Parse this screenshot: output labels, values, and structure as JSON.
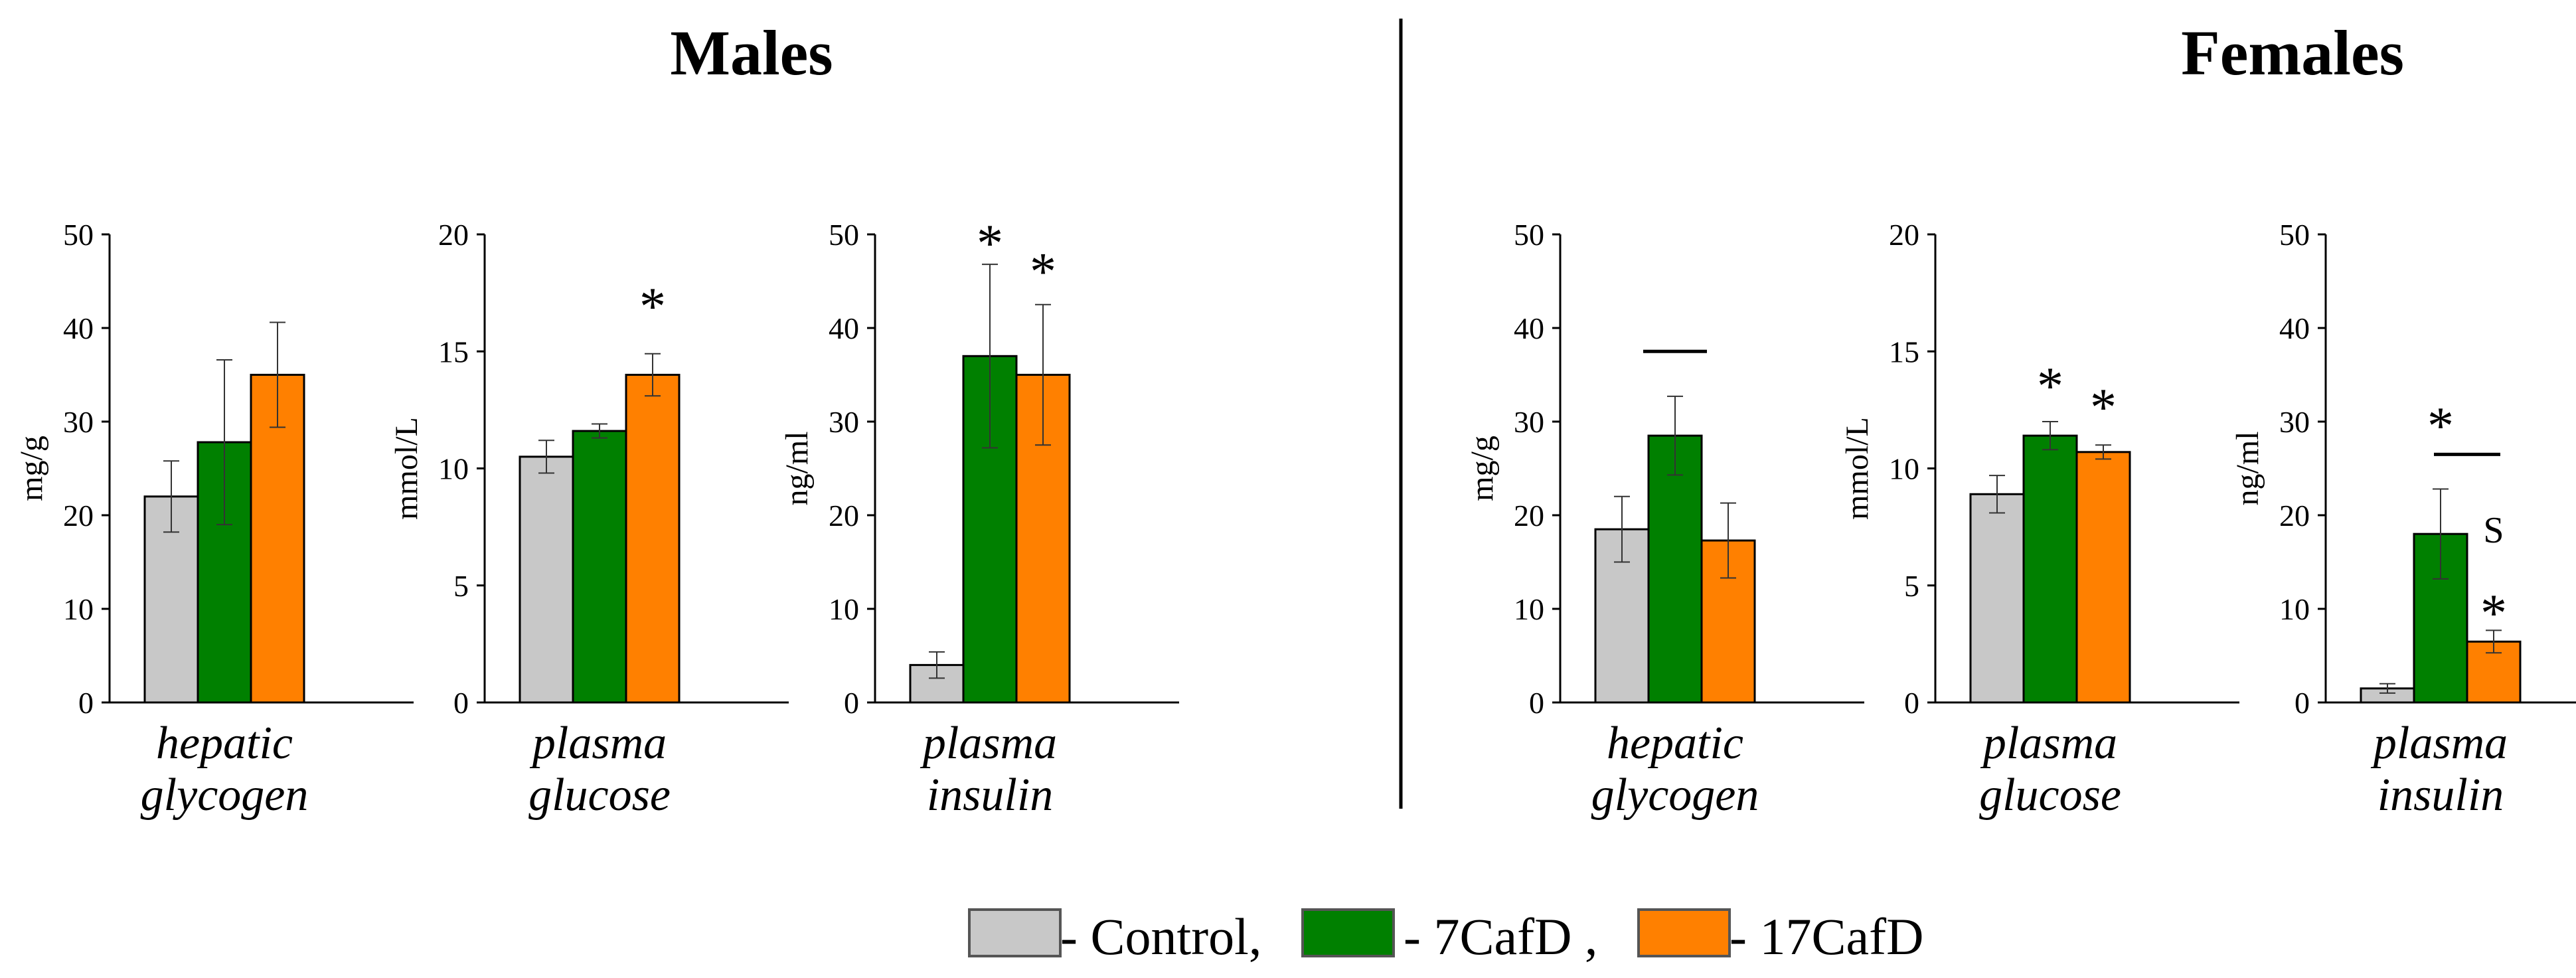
{
  "headings": {
    "males": "Males",
    "females": "Females"
  },
  "colors": {
    "Control": "#c8c8c8",
    "7CafD": "#008000",
    "17CafD": "#ff8000",
    "significance_S": "#ff0000"
  },
  "legend": [
    {
      "series": "Control",
      "label": "- Control,"
    },
    {
      "series": "7CafD",
      "label": "- 7CafD ,"
    },
    {
      "series": "17CafD",
      "label": "- 17CafD"
    }
  ],
  "chart_data": [
    {
      "type": "bar",
      "group": "Males",
      "xlabel_lines": [
        "hepatic",
        "glycogen"
      ],
      "ylabel": "mg/g",
      "ylim": [
        0,
        50
      ],
      "yticks": [
        0,
        10,
        20,
        30,
        40,
        50
      ],
      "series": [
        {
          "name": "Control",
          "value": 22,
          "error": 3.8
        },
        {
          "name": "7CafD",
          "value": 27.8,
          "error": 8.8
        },
        {
          "name": "17CafD",
          "value": 35,
          "error": 5.6
        }
      ],
      "annotations": []
    },
    {
      "type": "bar",
      "group": "Males",
      "xlabel_lines": [
        "plasma",
        "glucose"
      ],
      "ylabel": "mmol/L",
      "ylim": [
        0,
        20
      ],
      "yticks": [
        0,
        5,
        10,
        15,
        20
      ],
      "series": [
        {
          "name": "Control",
          "value": 10.5,
          "error": 0.7
        },
        {
          "name": "7CafD",
          "value": 11.6,
          "error": 0.3
        },
        {
          "name": "17CafD",
          "value": 14,
          "error": 0.9
        }
      ],
      "annotations": [
        {
          "text": "*",
          "over": "17CafD",
          "y": 17.3
        }
      ]
    },
    {
      "type": "bar",
      "group": "Males",
      "xlabel_lines": [
        "plasma",
        "insulin"
      ],
      "ylabel": "ng/ml",
      "ylim": [
        0,
        50
      ],
      "yticks": [
        0,
        10,
        20,
        30,
        40,
        50
      ],
      "series": [
        {
          "name": "Control",
          "value": 4,
          "error": 1.4
        },
        {
          "name": "7CafD",
          "value": 37,
          "error": 9.8
        },
        {
          "name": "17CafD",
          "value": 35,
          "error": 7.5
        }
      ],
      "annotations": [
        {
          "text": "*",
          "over": "7CafD",
          "y": 50
        },
        {
          "text": "*",
          "over": "17CafD",
          "y": 47
        }
      ]
    },
    {
      "type": "bar",
      "group": "Females",
      "xlabel_lines": [
        "hepatic",
        "glycogen"
      ],
      "ylabel": "mg/g",
      "ylim": [
        0,
        50
      ],
      "yticks": [
        0,
        10,
        20,
        30,
        40,
        50
      ],
      "series": [
        {
          "name": "Control",
          "value": 18.5,
          "error": 3.5
        },
        {
          "name": "7CafD",
          "value": 28.5,
          "error": 4.2
        },
        {
          "name": "17CafD",
          "value": 17.3,
          "error": 4
        }
      ],
      "annotations": [
        {
          "text": "—",
          "over": "7CafD",
          "y": 37.5
        }
      ]
    },
    {
      "type": "bar",
      "group": "Females",
      "xlabel_lines": [
        "plasma",
        "glucose"
      ],
      "ylabel": "mmol/L",
      "ylim": [
        0,
        20
      ],
      "yticks": [
        0,
        5,
        10,
        15,
        20
      ],
      "series": [
        {
          "name": "Control",
          "value": 8.9,
          "error": 0.8
        },
        {
          "name": "7CafD",
          "value": 11.4,
          "error": 0.6
        },
        {
          "name": "17CafD",
          "value": 10.7,
          "error": 0.3
        }
      ],
      "annotations": [
        {
          "text": "*",
          "over": "7CafD",
          "y": 13.9
        },
        {
          "text": "*",
          "over": "17CafD",
          "y": 13
        }
      ]
    },
    {
      "type": "bar",
      "group": "Females",
      "xlabel_lines": [
        "plasma",
        "insulin"
      ],
      "ylabel": "ng/ml",
      "ylim": [
        0,
        50
      ],
      "yticks": [
        0,
        10,
        20,
        30,
        40,
        50
      ],
      "series": [
        {
          "name": "Control",
          "value": 1.5,
          "error": 0.5
        },
        {
          "name": "7CafD",
          "value": 18,
          "error": 4.8
        },
        {
          "name": "17CafD",
          "value": 6.5,
          "error": 1.2
        }
      ],
      "annotations": [
        {
          "text": "*",
          "over": "7CafD",
          "y": 30.5
        },
        {
          "text": "—",
          "between": [
            "7CafD",
            "17CafD"
          ],
          "y": 26.5
        },
        {
          "text": "S",
          "over": "17CafD",
          "y": 18.5,
          "color": "#ff0000"
        },
        {
          "text": "*",
          "over": "17CafD",
          "y": 10.5
        }
      ]
    }
  ]
}
